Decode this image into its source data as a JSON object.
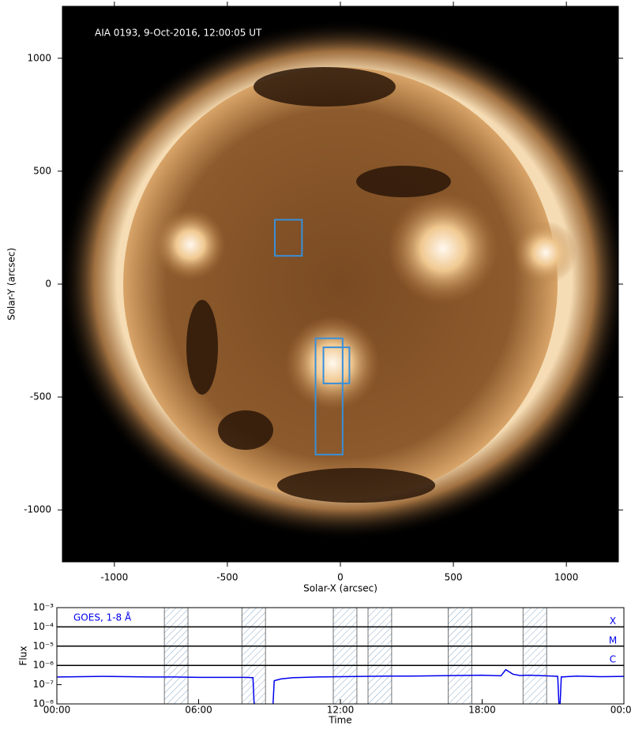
{
  "chart_data": [
    {
      "type": "image",
      "annotation": "AIA 0193, 9-Oct-2016, 12:00:05 UT",
      "xlabel": "Solar-X (arcsec)",
      "ylabel": "Solar-Y (arcsec)",
      "xlim": [
        -1230,
        1230
      ],
      "ylim": [
        -1230,
        1230
      ],
      "xticks": [
        -1000,
        -500,
        0,
        500,
        1000
      ],
      "yticks": [
        -1000,
        -500,
        0,
        500,
        1000
      ],
      "color": "#3a8fd8",
      "boxes": [
        {
          "x": [
            -290,
            -170
          ],
          "y": [
            125,
            285
          ]
        },
        {
          "x": [
            -110,
            10
          ],
          "y": [
            -755,
            -240
          ]
        },
        {
          "x": [
            -75,
            40
          ],
          "y": [
            -440,
            -280
          ]
        }
      ]
    },
    {
      "type": "line",
      "log_y": true,
      "xlabel": "Time",
      "ylabel": "Flux",
      "xlim": [
        0,
        24
      ],
      "ylim": [
        1e-08,
        0.001
      ],
      "xticks": [
        {
          "value": 0,
          "label": "00:00"
        },
        {
          "value": 6,
          "label": "06:00"
        },
        {
          "value": 12,
          "label": "12:00"
        },
        {
          "value": 18,
          "label": "18:00"
        },
        {
          "value": 24,
          "label": "00:00"
        }
      ],
      "yticks": [
        {
          "value": 0.001,
          "label": "10⁻³"
        },
        {
          "value": 0.0001,
          "label": "10⁻⁴"
        },
        {
          "value": 1e-05,
          "label": "10⁻⁵"
        },
        {
          "value": 1e-06,
          "label": "10⁻⁶"
        },
        {
          "value": 1e-07,
          "label": "10⁻⁷"
        },
        {
          "value": 1e-08,
          "label": "10⁻⁸"
        }
      ],
      "classes": [
        {
          "label": "X",
          "value": 0.0001
        },
        {
          "label": "M",
          "value": 1e-05
        },
        {
          "label": "C",
          "value": 1e-06
        }
      ],
      "intervals": [
        [
          4.55,
          5.55
        ],
        [
          7.83,
          8.83
        ],
        [
          11.7,
          12.7
        ],
        [
          13.17,
          14.17
        ],
        [
          16.56,
          17.56
        ],
        [
          19.73,
          20.73
        ]
      ],
      "x": [
        0,
        1,
        2,
        3,
        4,
        5,
        6,
        7,
        8,
        8.3,
        8.35,
        8.6,
        9.15,
        9.2,
        9.5,
        10,
        11,
        12,
        13,
        14,
        15,
        16,
        17,
        18,
        18.8,
        19,
        19.3,
        19.6,
        20,
        21,
        21.2,
        21.25,
        21.3,
        21.35,
        22,
        23,
        24
      ],
      "series": [
        {
          "name": "GOES, 1-8 Å",
          "color": "#0000ee",
          "values": [
            2.5e-07,
            2.6e-07,
            2.7e-07,
            2.6e-07,
            2.5e-07,
            2.5e-07,
            2.4e-07,
            2.4e-07,
            2.4e-07,
            2.3e-07,
            1e-08,
            null,
            1e-08,
            1.6e-07,
            2e-07,
            2.3e-07,
            2.5e-07,
            2.6e-07,
            2.7e-07,
            2.8e-07,
            2.8e-07,
            2.9e-07,
            3e-07,
            3.1e-07,
            2.9e-07,
            6e-07,
            3.5e-07,
            3e-07,
            3.1e-07,
            2.8e-07,
            2.7e-07,
            1e-08,
            1e-08,
            2.5e-07,
            2.8e-07,
            2.6e-07,
            2.7e-07
          ]
        }
      ]
    }
  ]
}
